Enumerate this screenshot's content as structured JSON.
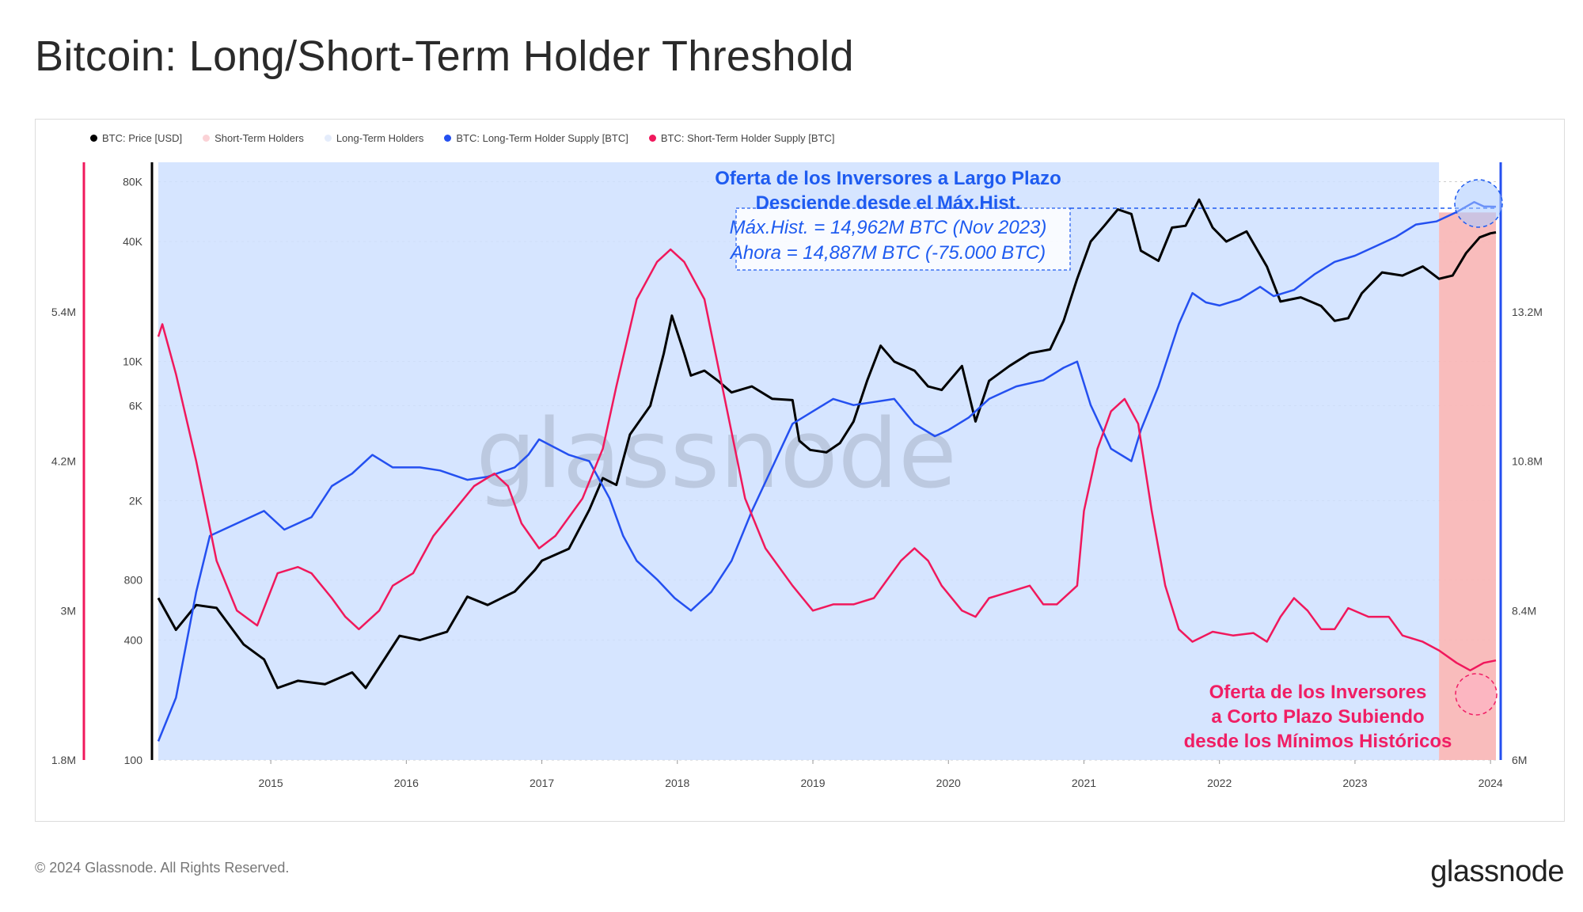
{
  "title": "Bitcoin: Long/Short-Term Holder Threshold",
  "footer": {
    "copyright": "© 2024 Glassnode. All Rights Reserved.",
    "brand": "glassnode",
    "watermark": "glassnode"
  },
  "colors": {
    "price": "#000000",
    "sth_band": "#f9b8b8",
    "lth_band": "#cfe0ff",
    "lth_supply": "#2450f0",
    "sth_supply": "#f0185c",
    "annotation_blue": "#1e5bf0",
    "annotation_red": "#f01e64"
  },
  "legend": [
    {
      "label": "BTC: Price [USD]",
      "color": "#000000"
    },
    {
      "label": "Short-Term Holders",
      "color": "#fbd2d6"
    },
    {
      "label": "Long-Term Holders",
      "color": "#e4ecfb"
    },
    {
      "label": "BTC: Long-Term Holder Supply [BTC]",
      "color": "#2450f0"
    },
    {
      "label": "BTC: Short-Term Holder Supply [BTC]",
      "color": "#f0185c"
    }
  ],
  "annotations": {
    "lth": {
      "line1": "Oferta de los Inversores a Largo Plazo",
      "line2": "Desciende desde el Máx.Hist.",
      "line3": "Máx.Hist. = 14,962M BTC (Nov 2023)",
      "line4": "Ahora = 14,887M BTC (-75.000 BTC)"
    },
    "sth": {
      "line1": "Oferta de los Inversores",
      "line2": "a Corto Plazo Subiendo",
      "line3": "desde los Mínimos Históricos"
    }
  },
  "chart_data": {
    "type": "line",
    "x_ticks": [
      "2015",
      "2016",
      "2017",
      "2018",
      "2019",
      "2020",
      "2021",
      "2022",
      "2023",
      "2024"
    ],
    "x_range": [
      2014.17,
      2024.04
    ],
    "price_axis": {
      "scale": "log",
      "range": [
        100,
        100000
      ],
      "ticks": [
        "100",
        "400",
        "800",
        "2K",
        "6K",
        "10K",
        "40K",
        "80K"
      ],
      "tick_values": [
        100,
        400,
        800,
        2000,
        6000,
        10000,
        40000,
        80000
      ]
    },
    "sth_axis": {
      "range": [
        1800000,
        6600000
      ],
      "ticks": [
        "1.8M",
        "3M",
        "4.2M",
        "5.4M"
      ],
      "tick_values": [
        1800000,
        3000000,
        4200000,
        5400000
      ]
    },
    "lth_axis": {
      "range": [
        6000000,
        15600000
      ],
      "ticks": [
        "6M",
        "8.4M",
        "10.8M",
        "13.2M"
      ],
      "tick_values": [
        6000000,
        8400000,
        10800000,
        13200000
      ]
    },
    "sth_band_start": 2023.62,
    "series": [
      {
        "name": "BTC: Price [USD]",
        "axis": "price",
        "points": [
          [
            2014.17,
            650
          ],
          [
            2014.3,
            450
          ],
          [
            2014.45,
            600
          ],
          [
            2014.6,
            580
          ],
          [
            2014.8,
            380
          ],
          [
            2014.95,
            320
          ],
          [
            2015.05,
            230
          ],
          [
            2015.2,
            250
          ],
          [
            2015.4,
            240
          ],
          [
            2015.6,
            275
          ],
          [
            2015.7,
            230
          ],
          [
            2015.85,
            330
          ],
          [
            2015.95,
            420
          ],
          [
            2016.1,
            400
          ],
          [
            2016.3,
            440
          ],
          [
            2016.45,
            660
          ],
          [
            2016.6,
            600
          ],
          [
            2016.8,
            700
          ],
          [
            2016.95,
            900
          ],
          [
            2017.0,
            1000
          ],
          [
            2017.2,
            1150
          ],
          [
            2017.35,
            1800
          ],
          [
            2017.45,
            2600
          ],
          [
            2017.55,
            2400
          ],
          [
            2017.65,
            4300
          ],
          [
            2017.8,
            6000
          ],
          [
            2017.9,
            11000
          ],
          [
            2017.96,
            17000
          ],
          [
            2018.05,
            11000
          ],
          [
            2018.1,
            8500
          ],
          [
            2018.2,
            9000
          ],
          [
            2018.3,
            8000
          ],
          [
            2018.4,
            7000
          ],
          [
            2018.55,
            7500
          ],
          [
            2018.7,
            6500
          ],
          [
            2018.85,
            6400
          ],
          [
            2018.9,
            4000
          ],
          [
            2018.98,
            3600
          ],
          [
            2019.1,
            3500
          ],
          [
            2019.2,
            3900
          ],
          [
            2019.3,
            5000
          ],
          [
            2019.4,
            8000
          ],
          [
            2019.5,
            12000
          ],
          [
            2019.6,
            10000
          ],
          [
            2019.75,
            9000
          ],
          [
            2019.85,
            7500
          ],
          [
            2019.95,
            7200
          ],
          [
            2020.1,
            9500
          ],
          [
            2020.2,
            5000
          ],
          [
            2020.3,
            8000
          ],
          [
            2020.45,
            9500
          ],
          [
            2020.6,
            11000
          ],
          [
            2020.75,
            11500
          ],
          [
            2020.85,
            16000
          ],
          [
            2020.95,
            26000
          ],
          [
            2021.05,
            40000
          ],
          [
            2021.15,
            48000
          ],
          [
            2021.25,
            58000
          ],
          [
            2021.35,
            55000
          ],
          [
            2021.42,
            36000
          ],
          [
            2021.55,
            32000
          ],
          [
            2021.65,
            47000
          ],
          [
            2021.75,
            48000
          ],
          [
            2021.85,
            65000
          ],
          [
            2021.95,
            47000
          ],
          [
            2022.05,
            40000
          ],
          [
            2022.2,
            45000
          ],
          [
            2022.35,
            30000
          ],
          [
            2022.45,
            20000
          ],
          [
            2022.6,
            21000
          ],
          [
            2022.75,
            19000
          ],
          [
            2022.85,
            16000
          ],
          [
            2022.95,
            16500
          ],
          [
            2023.05,
            22000
          ],
          [
            2023.2,
            28000
          ],
          [
            2023.35,
            27000
          ],
          [
            2023.5,
            30000
          ],
          [
            2023.62,
            26000
          ],
          [
            2023.72,
            27000
          ],
          [
            2023.82,
            35000
          ],
          [
            2023.92,
            42000
          ],
          [
            2024.0,
            44000
          ],
          [
            2024.04,
            44500
          ]
        ]
      },
      {
        "name": "BTC: Long-Term Holder Supply [BTC]",
        "axis": "lth",
        "points": [
          [
            2014.17,
            6300
          ],
          [
            2014.3,
            7000
          ],
          [
            2014.45,
            8700
          ],
          [
            2014.55,
            9600
          ],
          [
            2014.75,
            9800
          ],
          [
            2014.95,
            10000
          ],
          [
            2015.1,
            9700
          ],
          [
            2015.3,
            9900
          ],
          [
            2015.45,
            10400
          ],
          [
            2015.6,
            10600
          ],
          [
            2015.75,
            10900
          ],
          [
            2015.9,
            10700
          ],
          [
            2016.1,
            10700
          ],
          [
            2016.25,
            10650
          ],
          [
            2016.45,
            10500
          ],
          [
            2016.6,
            10550
          ],
          [
            2016.8,
            10700
          ],
          [
            2016.9,
            10900
          ],
          [
            2016.98,
            11150
          ],
          [
            2017.2,
            10900
          ],
          [
            2017.35,
            10800
          ],
          [
            2017.5,
            10200
          ],
          [
            2017.6,
            9600
          ],
          [
            2017.7,
            9200
          ],
          [
            2017.85,
            8900
          ],
          [
            2017.98,
            8600
          ],
          [
            2018.1,
            8400
          ],
          [
            2018.25,
            8700
          ],
          [
            2018.4,
            9200
          ],
          [
            2018.55,
            10000
          ],
          [
            2018.7,
            10700
          ],
          [
            2018.85,
            11400
          ],
          [
            2019.0,
            11600
          ],
          [
            2019.15,
            11800
          ],
          [
            2019.3,
            11700
          ],
          [
            2019.45,
            11750
          ],
          [
            2019.6,
            11800
          ],
          [
            2019.75,
            11400
          ],
          [
            2019.9,
            11200
          ],
          [
            2020.0,
            11300
          ],
          [
            2020.15,
            11500
          ],
          [
            2020.3,
            11800
          ],
          [
            2020.5,
            12000
          ],
          [
            2020.7,
            12100
          ],
          [
            2020.85,
            12300
          ],
          [
            2020.95,
            12400
          ],
          [
            2021.05,
            11700
          ],
          [
            2021.2,
            11000
          ],
          [
            2021.35,
            10800
          ],
          [
            2021.42,
            11300
          ],
          [
            2021.55,
            12000
          ],
          [
            2021.7,
            13000
          ],
          [
            2021.8,
            13500
          ],
          [
            2021.9,
            13350
          ],
          [
            2022.0,
            13300
          ],
          [
            2022.15,
            13400
          ],
          [
            2022.3,
            13600
          ],
          [
            2022.4,
            13450
          ],
          [
            2022.55,
            13550
          ],
          [
            2022.7,
            13800
          ],
          [
            2022.85,
            14000
          ],
          [
            2023.0,
            14100
          ],
          [
            2023.15,
            14250
          ],
          [
            2023.3,
            14400
          ],
          [
            2023.45,
            14600
          ],
          [
            2023.6,
            14650
          ],
          [
            2023.75,
            14800
          ],
          [
            2023.88,
            14962
          ],
          [
            2023.95,
            14890
          ],
          [
            2024.04,
            14887
          ]
        ]
      },
      {
        "name": "BTC: Short-Term Holder Supply [BTC]",
        "axis": "sth",
        "points": [
          [
            2014.17,
            5200
          ],
          [
            2014.2,
            5300
          ],
          [
            2014.3,
            4900
          ],
          [
            2014.45,
            4200
          ],
          [
            2014.6,
            3400
          ],
          [
            2014.75,
            3000
          ],
          [
            2014.9,
            2880
          ],
          [
            2015.05,
            3300
          ],
          [
            2015.2,
            3350
          ],
          [
            2015.3,
            3300
          ],
          [
            2015.45,
            3100
          ],
          [
            2015.55,
            2950
          ],
          [
            2015.65,
            2850
          ],
          [
            2015.8,
            3000
          ],
          [
            2015.9,
            3200
          ],
          [
            2016.05,
            3300
          ],
          [
            2016.2,
            3600
          ],
          [
            2016.35,
            3800
          ],
          [
            2016.5,
            4000
          ],
          [
            2016.65,
            4100
          ],
          [
            2016.75,
            4000
          ],
          [
            2016.85,
            3700
          ],
          [
            2016.98,
            3500
          ],
          [
            2017.1,
            3600
          ],
          [
            2017.3,
            3900
          ],
          [
            2017.45,
            4300
          ],
          [
            2017.55,
            4800
          ],
          [
            2017.7,
            5500
          ],
          [
            2017.85,
            5800
          ],
          [
            2017.95,
            5900
          ],
          [
            2018.05,
            5800
          ],
          [
            2018.2,
            5500
          ],
          [
            2018.35,
            4700
          ],
          [
            2018.5,
            3900
          ],
          [
            2018.65,
            3500
          ],
          [
            2018.85,
            3200
          ],
          [
            2019.0,
            3000
          ],
          [
            2019.15,
            3050
          ],
          [
            2019.3,
            3050
          ],
          [
            2019.45,
            3100
          ],
          [
            2019.55,
            3250
          ],
          [
            2019.65,
            3400
          ],
          [
            2019.75,
            3500
          ],
          [
            2019.85,
            3400
          ],
          [
            2019.95,
            3200
          ],
          [
            2020.1,
            3000
          ],
          [
            2020.2,
            2950
          ],
          [
            2020.3,
            3100
          ],
          [
            2020.45,
            3150
          ],
          [
            2020.6,
            3200
          ],
          [
            2020.7,
            3050
          ],
          [
            2020.8,
            3050
          ],
          [
            2020.95,
            3200
          ],
          [
            2021.0,
            3800
          ],
          [
            2021.1,
            4300
          ],
          [
            2021.2,
            4600
          ],
          [
            2021.3,
            4700
          ],
          [
            2021.4,
            4500
          ],
          [
            2021.5,
            3800
          ],
          [
            2021.6,
            3200
          ],
          [
            2021.7,
            2850
          ],
          [
            2021.8,
            2750
          ],
          [
            2021.95,
            2830
          ],
          [
            2022.1,
            2800
          ],
          [
            2022.25,
            2820
          ],
          [
            2022.35,
            2750
          ],
          [
            2022.45,
            2950
          ],
          [
            2022.55,
            3100
          ],
          [
            2022.65,
            3000
          ],
          [
            2022.75,
            2850
          ],
          [
            2022.85,
            2850
          ],
          [
            2022.95,
            3020
          ],
          [
            2023.1,
            2950
          ],
          [
            2023.25,
            2950
          ],
          [
            2023.35,
            2800
          ],
          [
            2023.5,
            2750
          ],
          [
            2023.62,
            2680
          ],
          [
            2023.75,
            2580
          ],
          [
            2023.85,
            2520
          ],
          [
            2023.95,
            2580
          ],
          [
            2024.04,
            2600
          ]
        ]
      }
    ]
  }
}
